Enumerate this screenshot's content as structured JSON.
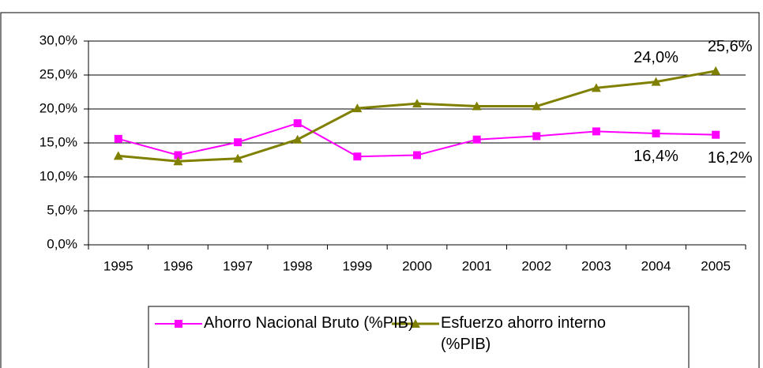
{
  "chart_data": {
    "type": "line",
    "categories": [
      "1995",
      "1996",
      "1997",
      "1998",
      "1999",
      "2000",
      "2001",
      "2002",
      "2003",
      "2004",
      "2005"
    ],
    "series": [
      {
        "name": "Ahorro Nacional Bruto (%PIB)",
        "color": "#ff00ff",
        "marker": "square",
        "values": [
          15.6,
          13.2,
          15.1,
          17.9,
          13.0,
          13.2,
          15.5,
          16.0,
          16.7,
          16.4,
          16.2
        ],
        "value_labels": [
          null,
          null,
          null,
          null,
          null,
          null,
          null,
          null,
          null,
          "16,4%",
          "16,2%"
        ]
      },
      {
        "name": "Esfuerzo ahorro interno (%PIB)",
        "color": "#808000",
        "marker": "triangle",
        "values": [
          13.1,
          12.3,
          12.7,
          15.5,
          20.1,
          20.8,
          20.4,
          20.4,
          23.1,
          24.0,
          25.6
        ],
        "value_labels": [
          null,
          null,
          null,
          null,
          null,
          null,
          null,
          null,
          null,
          "24,0%",
          "25,6%"
        ]
      }
    ],
    "ylim": [
      0,
      30
    ],
    "yticks": [
      {
        "value": 0,
        "label": "0,0%"
      },
      {
        "value": 5,
        "label": "5,0%"
      },
      {
        "value": 10,
        "label": "10,0%"
      },
      {
        "value": 15,
        "label": "15,0%"
      },
      {
        "value": 20,
        "label": "20,0%"
      },
      {
        "value": 25,
        "label": "25,0%"
      },
      {
        "value": 30,
        "label": "30,0%"
      }
    ],
    "grid": true,
    "legend": "bottom"
  }
}
